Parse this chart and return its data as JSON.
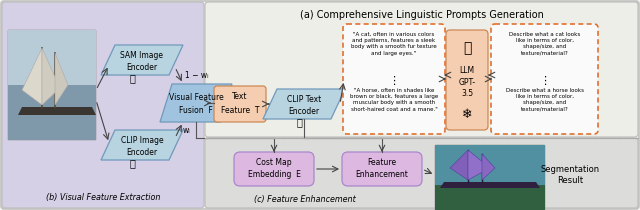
{
  "title": "(a) Comprehensive Linguistic Prompts Generation",
  "subtitle_b": "(b) Visual Feature Extraction",
  "subtitle_c": "(c) Feature Enhancement",
  "bg_outer": "#f2f2ee",
  "bg_left": "#d5d0e5",
  "bg_top_right": "#eeeee8",
  "bg_bot_right": "#dcdcda",
  "box_sam_color": "#b8d4e0",
  "box_clip_img_color": "#b8d4e0",
  "box_vff_color": "#a0c4e0",
  "box_text_feat_color": "#f5cdb0",
  "box_clip_text_color": "#b8d4e0",
  "box_cost_map_color": "#ddb8e0",
  "box_feat_enh_color": "#ddb8e0",
  "box_llm_color": "#f5cdb0",
  "dashed_orange": "#e07030",
  "arrow_color": "#444444",
  "line_color": "#555555",
  "edge_gray": "#888888",
  "edge_blue": "#7099bb",
  "edge_pink": "#aa88cc",
  "edge_orange": "#cc8855"
}
